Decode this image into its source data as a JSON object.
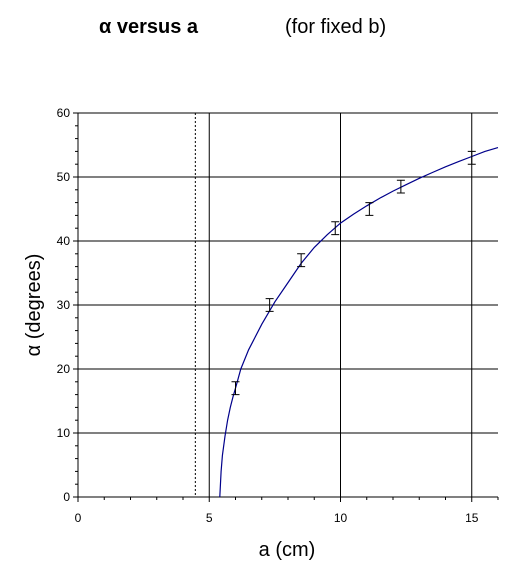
{
  "chart_data": {
    "type": "scatter",
    "title": "α versus a",
    "subtitle": "(for fixed b)",
    "xlabel": "a (cm)",
    "ylabel": "α (degrees)",
    "xlim": [
      0,
      16
    ],
    "ylim": [
      0,
      60
    ],
    "x_ticks": [
      0,
      5,
      10,
      15
    ],
    "x_minor_step": 1,
    "y_ticks": [
      0,
      10,
      20,
      30,
      40,
      50,
      60
    ],
    "y_minor_step": 2,
    "grid": true,
    "legend": "none",
    "reference_line": {
      "x": 4.47,
      "style": "dotted"
    },
    "series": [
      {
        "points": [
          {
            "x": 6.0,
            "y": 17.0,
            "err": 1.0
          },
          {
            "x": 7.3,
            "y": 30.0,
            "err": 1.0
          },
          {
            "x": 8.5,
            "y": 37.0,
            "err": 1.0
          },
          {
            "x": 9.8,
            "y": 42.0,
            "err": 1.0
          },
          {
            "x": 11.1,
            "y": 45.0,
            "err": 1.0
          },
          {
            "x": 12.3,
            "y": 48.5,
            "err": 1.0
          },
          {
            "x": 15.0,
            "y": 53.0,
            "err": 1.0
          }
        ]
      }
    ],
    "fit_curve": {
      "color": "#00008B",
      "points": [
        [
          5.4,
          0.0
        ],
        [
          5.45,
          4.0
        ],
        [
          5.5,
          6.5
        ],
        [
          5.6,
          9.5
        ],
        [
          5.7,
          12.0
        ],
        [
          5.8,
          14.0
        ],
        [
          5.9,
          15.6
        ],
        [
          6.0,
          17.0
        ],
        [
          6.2,
          20.0
        ],
        [
          6.5,
          23.0
        ],
        [
          7.0,
          27.0
        ],
        [
          7.5,
          30.5
        ],
        [
          8.0,
          33.5
        ],
        [
          8.5,
          36.5
        ],
        [
          9.0,
          39.0
        ],
        [
          9.5,
          41.0
        ],
        [
          10.0,
          42.8
        ],
        [
          10.5,
          44.2
        ],
        [
          11.0,
          45.5
        ],
        [
          11.5,
          46.7
        ],
        [
          12.0,
          47.8
        ],
        [
          12.5,
          48.8
        ],
        [
          13.0,
          49.8
        ],
        [
          13.5,
          50.7
        ],
        [
          14.0,
          51.6
        ],
        [
          14.5,
          52.4
        ],
        [
          15.0,
          53.2
        ],
        [
          15.5,
          54.0
        ],
        [
          16.0,
          54.6
        ]
      ]
    }
  }
}
